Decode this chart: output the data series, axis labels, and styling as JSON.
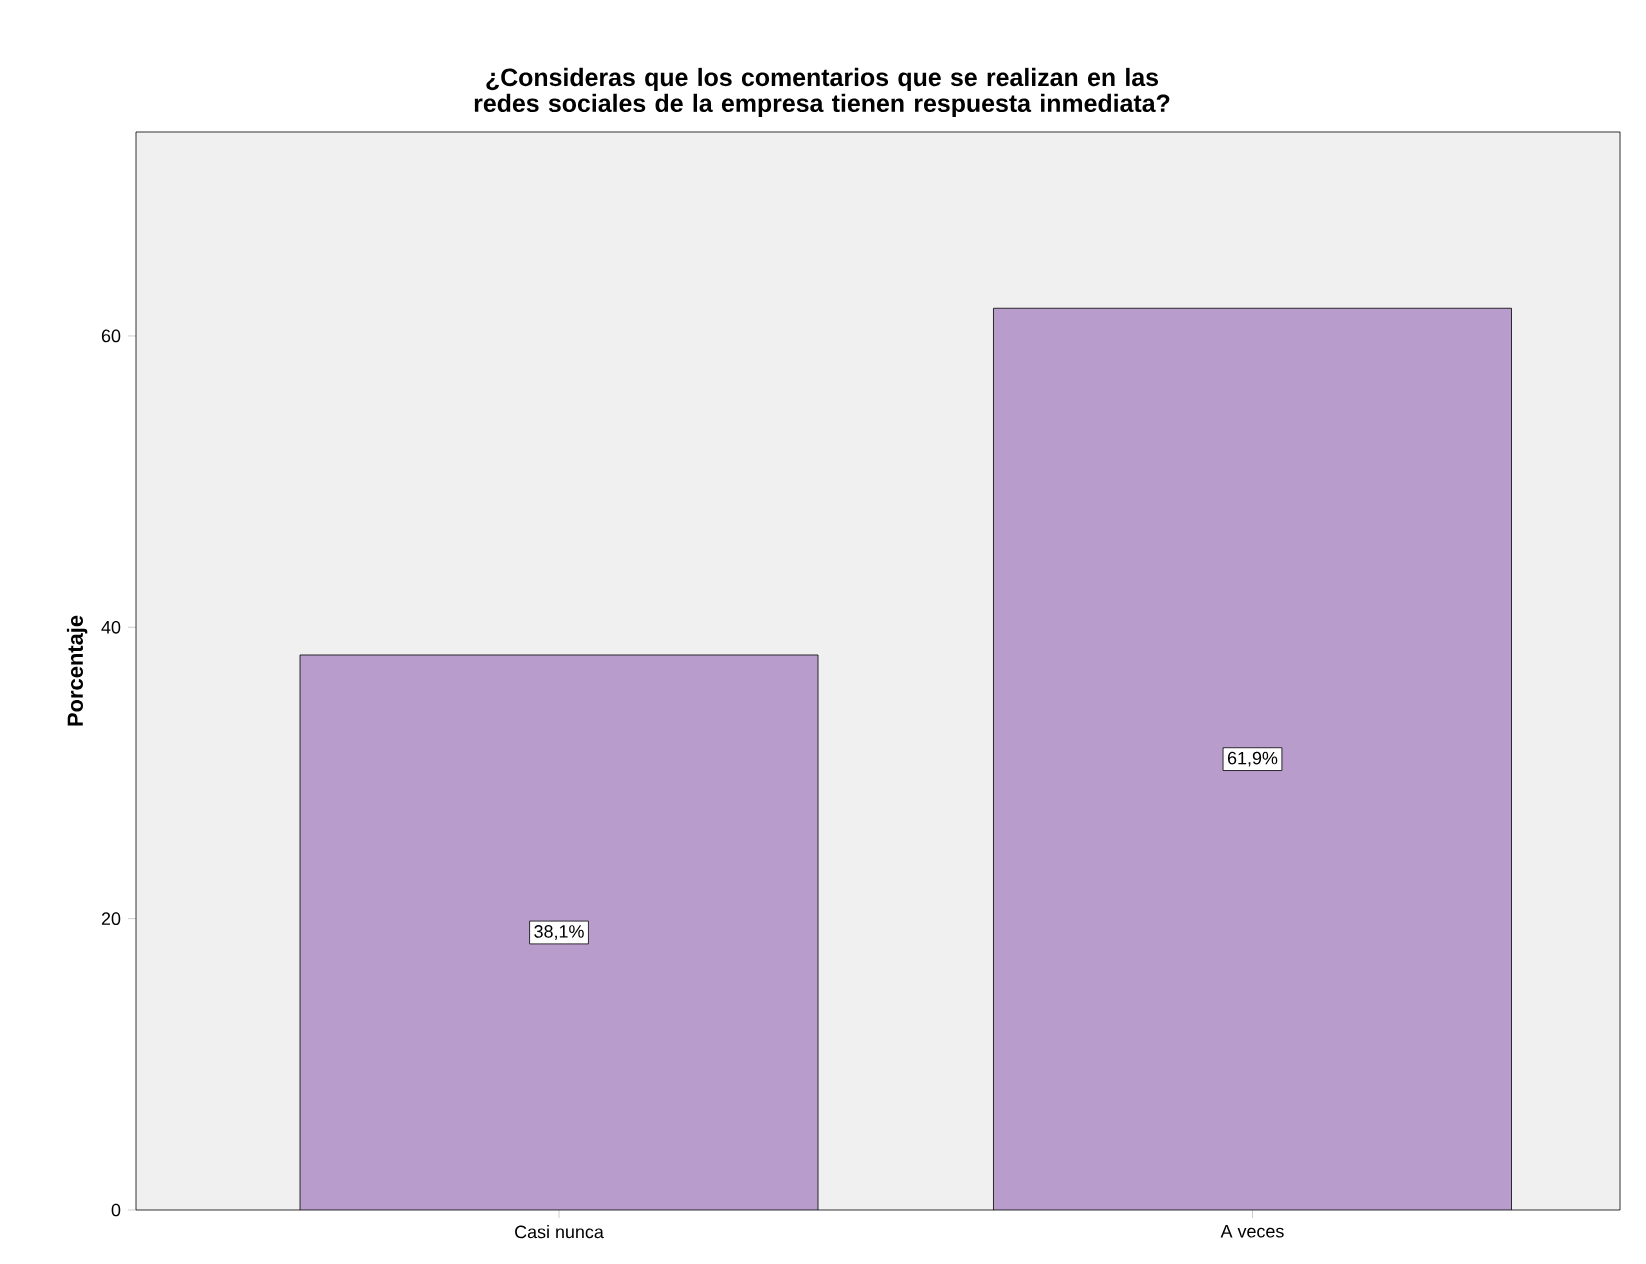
{
  "chart_data": {
    "type": "bar",
    "title": "¿Consideras que los comentarios que se realizan en las redes sociales de la empresa tienen respuesta inmediata?",
    "ylabel": "Porcentaje",
    "categories": [
      "Casi nunca",
      "A veces"
    ],
    "values": [
      38.1,
      61.9
    ],
    "value_labels": [
      "38,1%",
      "61,9%"
    ],
    "color": "#b89ccb",
    "ylim": [
      0,
      74
    ],
    "yticks": [
      0,
      20,
      40,
      60
    ]
  }
}
